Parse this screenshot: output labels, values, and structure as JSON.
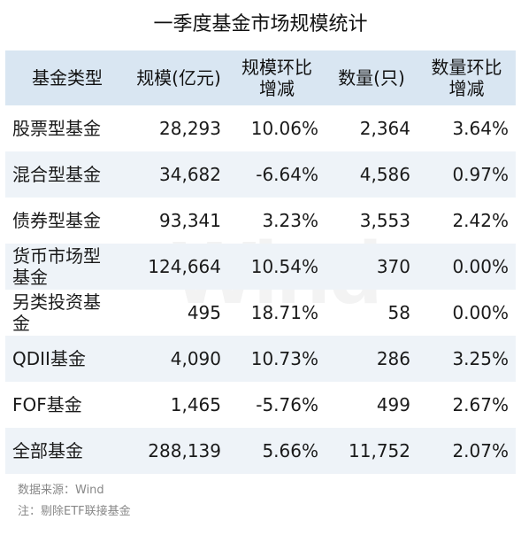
{
  "title": "一季度基金市场规模统计",
  "watermark": "Wind",
  "table": {
    "headers": [
      "基金类型",
      "规模(亿元)",
      "规模环比\n增减",
      "数量(只)",
      "数量环比\n增减"
    ],
    "rows": [
      [
        "股票型基金",
        "28,293",
        "10.06%",
        "2,364",
        "3.64%"
      ],
      [
        "混合型基金",
        "34,682",
        "-6.64%",
        "4,586",
        "0.97%"
      ],
      [
        "债券型基金",
        "93,341",
        "3.23%",
        "3,553",
        "2.42%"
      ],
      [
        "货币市场型\n基金",
        "124,664",
        "10.54%",
        "370",
        "0.00%"
      ],
      [
        "另类投资基\n金",
        "495",
        "18.71%",
        "58",
        "0.00%"
      ],
      [
        "QDII基金",
        "4,090",
        "10.73%",
        "286",
        "3.25%"
      ],
      [
        "FOF基金",
        "1,465",
        "-5.76%",
        "499",
        "2.67%"
      ],
      [
        "全部基金",
        "288,139",
        "5.66%",
        "11,752",
        "2.07%"
      ]
    ]
  },
  "footer": {
    "source": "数据来源：Wind",
    "note": "注：剔除ETF联接基金"
  },
  "colors": {
    "header_bg": "#d9e6f2",
    "stripe_bg": "#eef3f8",
    "text": "#1a1a1a",
    "footer_text": "#888888"
  }
}
